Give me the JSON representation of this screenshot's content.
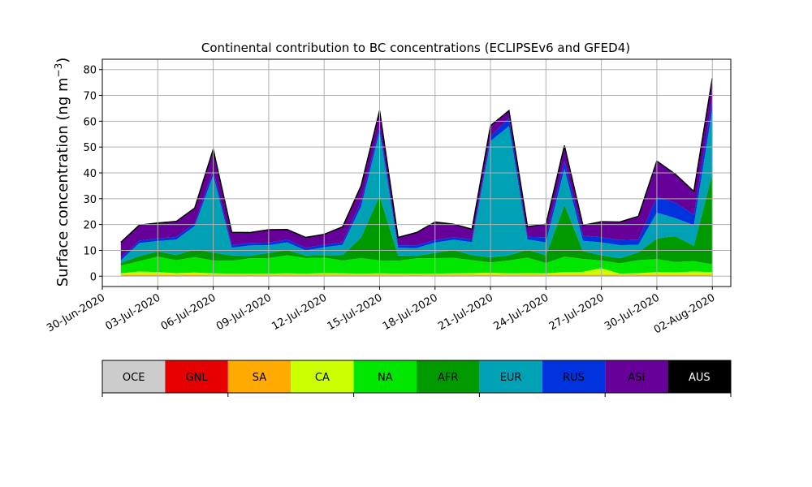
{
  "chart_data": {
    "type": "area",
    "title": "Continental contribution to BC concentrations (ECLIPSEv6 and GFED4)",
    "ylabel": "Surface concentration (ng m⁻³)",
    "ylabel_parts": {
      "main": "Surface concentration (ng m",
      "sup": "−3",
      "tail": ")"
    },
    "xlabel": "",
    "grid": true,
    "ylim": [
      -4,
      84
    ],
    "xlim": [
      "2020-06-30",
      "2020-08-03"
    ],
    "yticks": [
      0,
      10,
      20,
      30,
      40,
      50,
      60,
      70,
      80
    ],
    "xticks": [
      "30-Jun-2020",
      "03-Jul-2020",
      "06-Jul-2020",
      "09-Jul-2020",
      "12-Jul-2020",
      "15-Jul-2020",
      "18-Jul-2020",
      "21-Jul-2020",
      "24-Jul-2020",
      "27-Jul-2020",
      "30-Jul-2020",
      "02-Aug-2020"
    ],
    "x": [
      "2020-07-01",
      "2020-07-02",
      "2020-07-03",
      "2020-07-04",
      "2020-07-05",
      "2020-07-06",
      "2020-07-07",
      "2020-07-08",
      "2020-07-09",
      "2020-07-10",
      "2020-07-11",
      "2020-07-12",
      "2020-07-13",
      "2020-07-14",
      "2020-07-15",
      "2020-07-16",
      "2020-07-17",
      "2020-07-18",
      "2020-07-19",
      "2020-07-20",
      "2020-07-21",
      "2020-07-22",
      "2020-07-23",
      "2020-07-24",
      "2020-07-25",
      "2020-07-26",
      "2020-07-27",
      "2020-07-28",
      "2020-07-29",
      "2020-07-30",
      "2020-07-31",
      "2020-08-01",
      "2020-08-02"
    ],
    "series": [
      {
        "name": "OCE",
        "color": "#cccccc",
        "values": [
          0.2,
          0.2,
          0.2,
          0.2,
          0.2,
          0.2,
          0.2,
          0.2,
          0.2,
          0.2,
          0.2,
          0.2,
          0.2,
          0.2,
          0.2,
          0.2,
          0.2,
          0.2,
          0.2,
          0.2,
          0.2,
          0.2,
          0.2,
          0.2,
          0.2,
          0.2,
          0.2,
          0.2,
          0.2,
          0.2,
          0.2,
          0.2,
          0.2
        ]
      },
      {
        "name": "GNL",
        "color": "#e60000",
        "values": [
          0.1,
          0.1,
          0.1,
          0.1,
          0.1,
          0.1,
          0.1,
          0.1,
          0.1,
          0.1,
          0.1,
          0.1,
          0.1,
          0.1,
          0.1,
          0.1,
          0.1,
          0.1,
          0.1,
          0.1,
          0.1,
          0.1,
          0.1,
          0.1,
          0.1,
          0.1,
          0.1,
          0.1,
          0.1,
          0.1,
          0.1,
          0.1,
          0.1
        ]
      },
      {
        "name": "SA",
        "color": "#ffaa00",
        "values": [
          0.3,
          0.3,
          0.3,
          0.3,
          0.3,
          0.3,
          0.3,
          0.3,
          0.3,
          0.3,
          0.3,
          0.3,
          0.3,
          0.3,
          0.3,
          0.3,
          0.3,
          0.3,
          0.3,
          0.3,
          0.3,
          0.3,
          0.3,
          0.3,
          0.3,
          0.3,
          0.3,
          0.3,
          0.3,
          0.3,
          0.3,
          0.3,
          0.3
        ]
      },
      {
        "name": "CA",
        "color": "#ccff00",
        "values": [
          0.5,
          1.2,
          1.0,
          0.6,
          0.8,
          0.5,
          0.4,
          0.3,
          0.4,
          0.5,
          0.4,
          0.6,
          0.5,
          0.4,
          0.5,
          0.4,
          0.3,
          0.4,
          0.5,
          0.6,
          0.7,
          0.5,
          0.6,
          0.5,
          1.0,
          1.1,
          2.5,
          0.4,
          0.6,
          1.0,
          0.9,
          1.2,
          1.0
        ]
      },
      {
        "name": "NA",
        "color": "#00e600",
        "values": [
          3,
          4,
          6,
          5,
          6,
          5,
          5,
          6,
          6,
          7,
          6,
          6,
          5,
          6,
          5,
          5,
          6,
          6,
          6,
          5,
          4,
          5,
          6,
          4,
          6,
          5,
          3,
          4,
          5,
          5,
          4,
          4,
          3
        ]
      },
      {
        "name": "AFR",
        "color": "#009900",
        "values": [
          1,
          2,
          2,
          2,
          3,
          3,
          2,
          1,
          2,
          2,
          1,
          1,
          2,
          8,
          25,
          2,
          1,
          2,
          3,
          2,
          2,
          2,
          3,
          3,
          20,
          3,
          2,
          2,
          3,
          8,
          10,
          6,
          35
        ]
      },
      {
        "name": "EUR",
        "color": "#00a0b5",
        "values": [
          1,
          5,
          4,
          6,
          9,
          30,
          3,
          4,
          3,
          3,
          2,
          3,
          4,
          12,
          25,
          3,
          3,
          4,
          4,
          5,
          45,
          50,
          4,
          5,
          14,
          4,
          5,
          5,
          3,
          10,
          7,
          8,
          25
        ]
      },
      {
        "name": "RUS",
        "color": "#0033dd",
        "values": [
          1,
          1,
          1,
          1,
          1,
          2,
          1,
          1,
          1,
          1,
          1,
          1,
          1,
          2,
          2,
          1,
          1,
          1,
          1,
          1,
          2,
          3,
          1,
          2,
          3,
          2,
          2,
          2,
          2,
          6,
          6,
          4,
          4
        ]
      },
      {
        "name": "ASI",
        "color": "#660099",
        "values": [
          6,
          6,
          6,
          6,
          6,
          8,
          5,
          4,
          5,
          4,
          4,
          4,
          6,
          6,
          6,
          3,
          5,
          7,
          5,
          4,
          4,
          3,
          4,
          5,
          6,
          4,
          6,
          7,
          9,
          14,
          11,
          9,
          8
        ]
      },
      {
        "name": "AUS",
        "color": "#000000",
        "values": [
          0,
          0,
          0,
          0,
          0,
          0,
          0,
          0,
          0,
          0,
          0,
          0,
          0,
          0,
          0,
          0,
          0,
          0,
          0,
          0,
          0,
          0,
          0,
          0,
          0,
          0,
          0,
          0,
          0,
          0,
          0,
          0,
          0
        ]
      }
    ],
    "total_line_color": "#000000"
  },
  "legend": {
    "items": [
      {
        "label": "OCE",
        "color": "#cccccc"
      },
      {
        "label": "GNL",
        "color": "#e60000"
      },
      {
        "label": "SA",
        "color": "#ffaa00"
      },
      {
        "label": "CA",
        "color": "#ccff00"
      },
      {
        "label": "NA",
        "color": "#00e600"
      },
      {
        "label": "AFR",
        "color": "#009900"
      },
      {
        "label": "EUR",
        "color": "#00a0b5"
      },
      {
        "label": "RUS",
        "color": "#0033dd"
      },
      {
        "label": "ASI",
        "color": "#660099"
      },
      {
        "label": "AUS",
        "color": "#000000",
        "text_color": "#ffffff"
      }
    ]
  }
}
